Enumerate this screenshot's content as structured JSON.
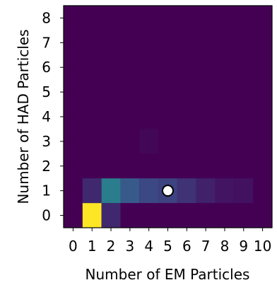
{
  "chart_data": {
    "type": "heatmap",
    "xlabel": "Number of EM Particles",
    "ylabel": "Number of HAD Particles",
    "x_ticks": [
      "0",
      "1",
      "2",
      "3",
      "4",
      "5",
      "6",
      "7",
      "8",
      "9",
      "10"
    ],
    "y_ticks": [
      "0",
      "1",
      "2",
      "3",
      "4",
      "5",
      "6",
      "7",
      "8"
    ],
    "x_range": [
      -0.5,
      10.5
    ],
    "y_range": [
      -0.5,
      8.5
    ],
    "colormap": "viridis",
    "background_color": "#440154",
    "cells": [
      {
        "x": 1,
        "y": 0,
        "value": 1.0
      },
      {
        "x": 2,
        "y": 0,
        "value": 0.12
      },
      {
        "x": 1,
        "y": 1,
        "value": 0.12
      },
      {
        "x": 2,
        "y": 1,
        "value": 0.42
      },
      {
        "x": 3,
        "y": 1,
        "value": 0.28
      },
      {
        "x": 4,
        "y": 1,
        "value": 0.22
      },
      {
        "x": 5,
        "y": 1,
        "value": 0.2
      },
      {
        "x": 6,
        "y": 1,
        "value": 0.15
      },
      {
        "x": 7,
        "y": 1,
        "value": 0.1
      },
      {
        "x": 8,
        "y": 1,
        "value": 0.06
      },
      {
        "x": 9,
        "y": 1,
        "value": 0.05
      },
      {
        "x": 4,
        "y": 3,
        "value": 0.02
      }
    ],
    "marker": {
      "x": 5,
      "y": 1,
      "fill": "#ffffff",
      "stroke": "#000000"
    }
  }
}
